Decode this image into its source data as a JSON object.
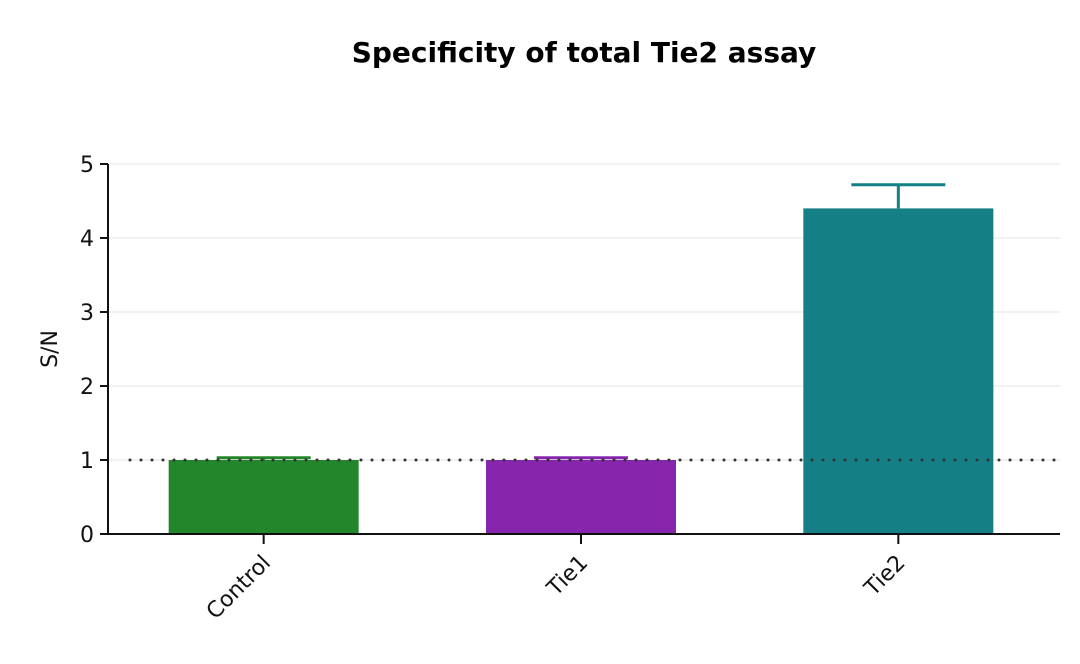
{
  "chart_data": {
    "type": "bar",
    "title": "Specificity of total Tie2 assay",
    "xlabel": "",
    "ylabel": "S/N",
    "ylim": [
      0,
      5
    ],
    "yticks": [
      "0",
      "1",
      "2",
      "3",
      "4",
      "5"
    ],
    "grid": true,
    "categories": [
      "Control",
      "Tie1",
      "Tie2"
    ],
    "values": [
      1.0,
      1.0,
      4.4
    ],
    "errors": [
      0.03,
      0.03,
      0.32
    ],
    "colors": [
      "#23862b",
      "#8526ad",
      "#157f86"
    ],
    "reference_line": 1
  }
}
